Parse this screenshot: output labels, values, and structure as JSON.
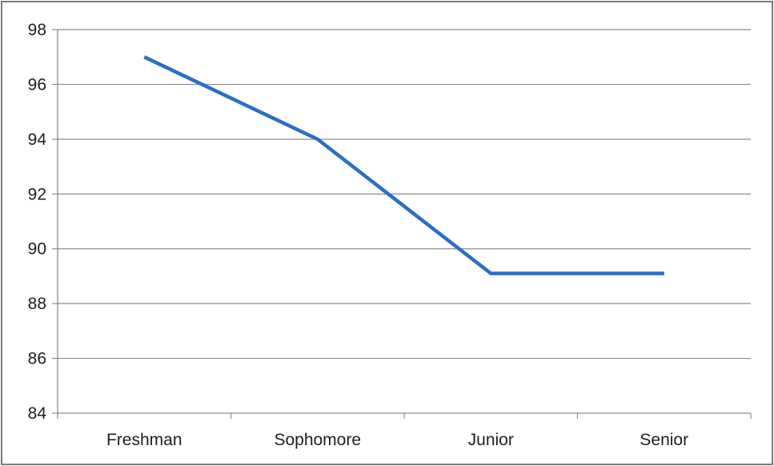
{
  "chart_data": {
    "type": "line",
    "title": "",
    "xlabel": "",
    "ylabel": "",
    "categories": [
      "Freshman",
      "Sophomore",
      "Junior",
      "Senior"
    ],
    "series": [
      {
        "values": [
          97,
          94,
          89.1,
          89.1
        ],
        "color": "#2a6fc4"
      }
    ],
    "ylim": [
      84,
      98
    ],
    "yticks": [
      84,
      86,
      88,
      90,
      92,
      94,
      96,
      98
    ],
    "grid": true,
    "legend": "none",
    "colors": {
      "line": "#2a6fc4",
      "grid": "#8c8c8c",
      "axis": "#8c8c8c",
      "border": "#7a7a7a",
      "text": "#1f1f1f"
    }
  }
}
